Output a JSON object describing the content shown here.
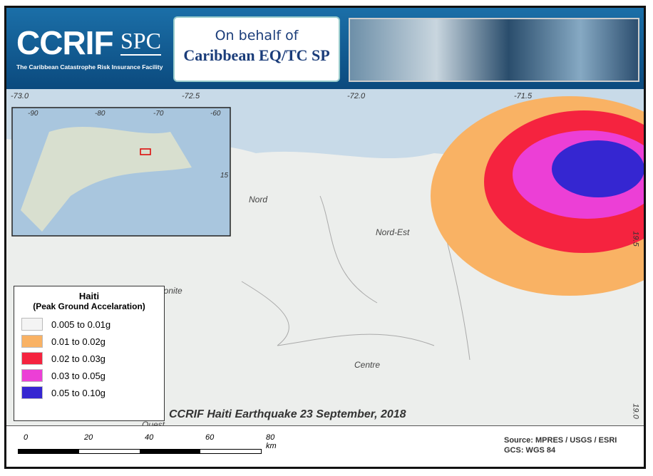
{
  "header": {
    "logo": "CCRIF",
    "logo_suffix": "SPC",
    "logo_subtitle": "The Caribbean Catastrophe Risk Insurance Facility",
    "behalf_line": "On behalf of",
    "behalf_name": "Caribbean EQ/TC SP"
  },
  "map": {
    "longitude_labels": [
      "-73.0",
      "-72.5",
      "-72.0",
      "-71.5"
    ],
    "latitude_labels": [
      "19.5",
      "19.0"
    ],
    "inset_labels": [
      "-90",
      "-80",
      "-70",
      "-60",
      "15"
    ],
    "places": [
      "Nord",
      "Nord-Est",
      "Artibonite",
      "Centre",
      "Ouest"
    ],
    "title": "CCRIF Haiti Earthquake 23 September, 2018"
  },
  "legend": {
    "title": "Haiti",
    "subtitle": "(Peak Ground Accelaration)",
    "items": [
      {
        "label": "0.005 to 0.01g",
        "color": "#f4f4f4"
      },
      {
        "label": "0.01 to 0.02g",
        "color": "#f9b264"
      },
      {
        "label": "0.02 to 0.03g",
        "color": "#f5233f"
      },
      {
        "label": "0.03 to 0.05g",
        "color": "#ec3fd6"
      },
      {
        "label": "0.05 to 0.10g",
        "color": "#3526d1"
      }
    ]
  },
  "scale_bar": {
    "labels": [
      "0",
      "20",
      "40",
      "60",
      "80 km"
    ]
  },
  "footer": {
    "source": "Source: MPRES / USGS / ESRI",
    "crs": "GCS: WGS 84"
  }
}
